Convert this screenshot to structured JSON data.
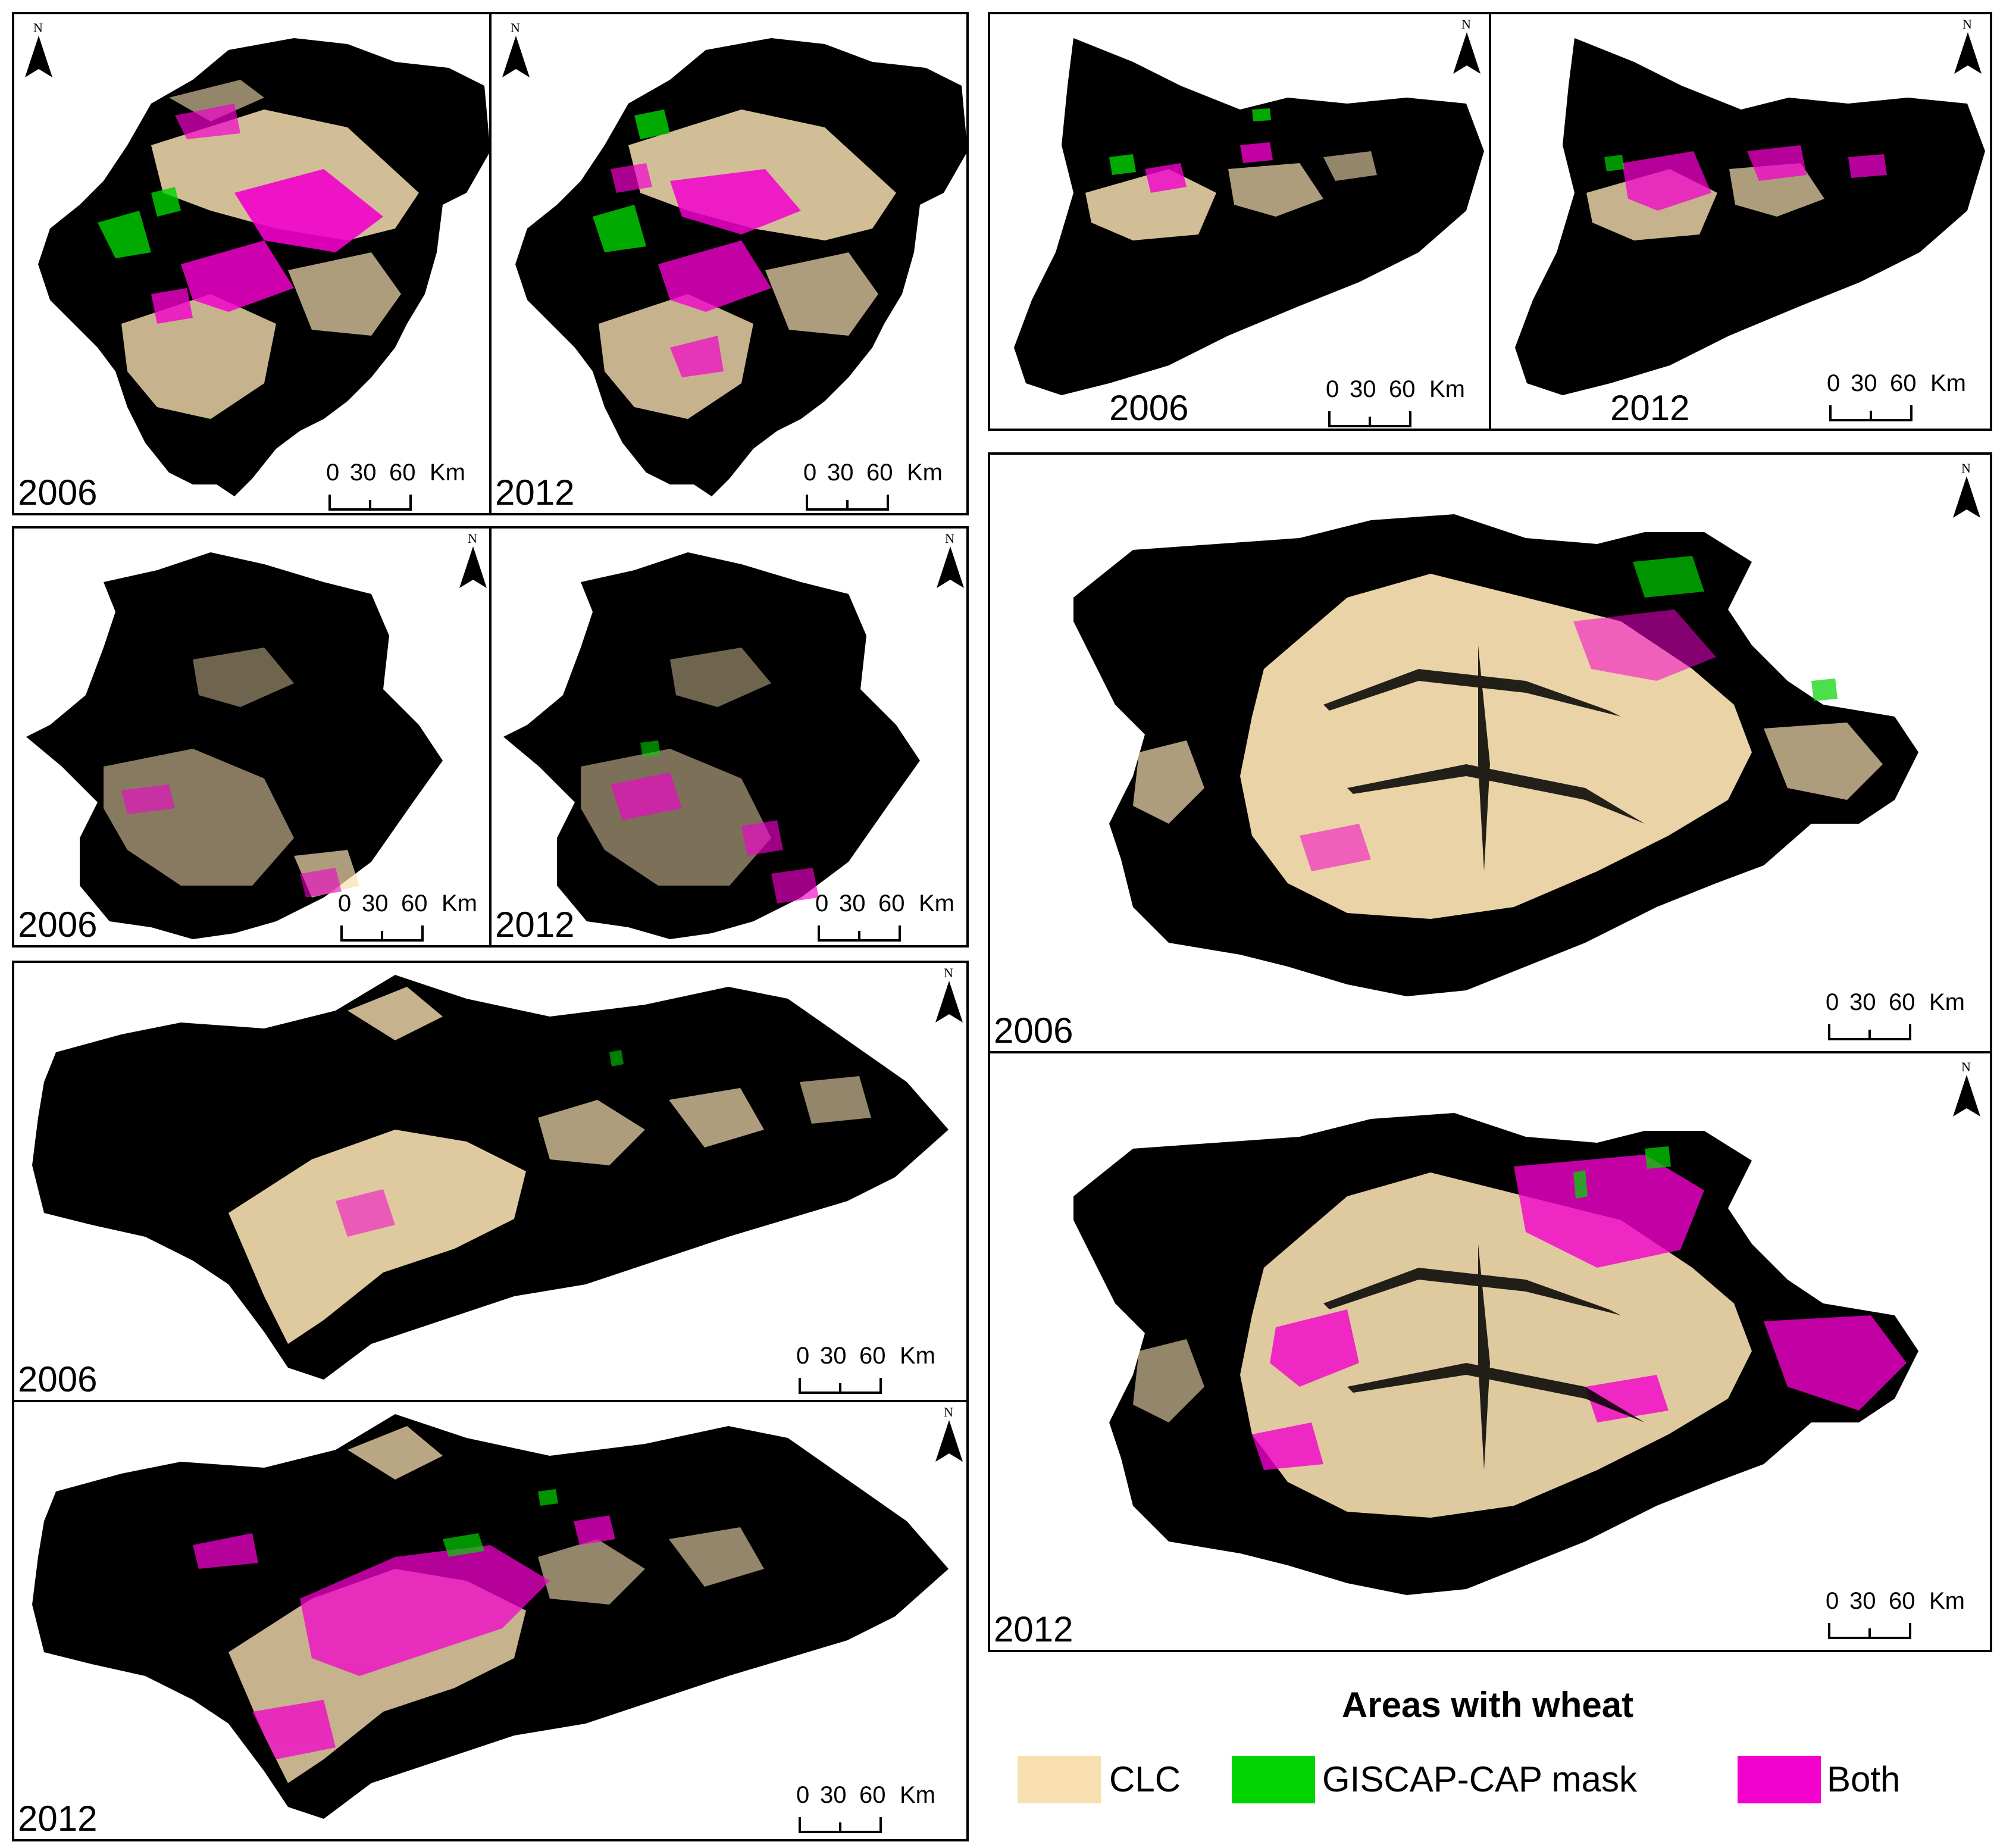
{
  "figure": {
    "panels": [
      {
        "id": "aragon-2006",
        "year": "2006",
        "scale_labels": [
          "0",
          "30",
          "60",
          "Km"
        ],
        "north_label": "N"
      },
      {
        "id": "aragon-2012",
        "year": "2012",
        "scale_labels": [
          "0",
          "30",
          "60",
          "Km"
        ],
        "north_label": "N"
      },
      {
        "id": "catalonia-2006",
        "year": "2006",
        "scale_labels": [
          "0",
          "30",
          "60",
          "Km"
        ],
        "north_label": "N"
      },
      {
        "id": "catalonia-2012",
        "year": "2012",
        "scale_labels": [
          "0",
          "30",
          "60",
          "Km"
        ],
        "north_label": "N"
      },
      {
        "id": "extremadura-2006",
        "year": "2006",
        "scale_labels": [
          "0",
          "30",
          "60",
          "Km"
        ],
        "north_label": "N"
      },
      {
        "id": "extremadura-2012",
        "year": "2012",
        "scale_labels": [
          "0",
          "30",
          "60",
          "Km"
        ],
        "north_label": "N"
      },
      {
        "id": "castilla-leon-2006",
        "year": "2006",
        "scale_labels": [
          "0",
          "30",
          "60",
          "Km"
        ],
        "north_label": "N"
      },
      {
        "id": "castilla-leon-2012",
        "year": "2012",
        "scale_labels": [
          "0",
          "30",
          "60",
          "Km"
        ],
        "north_label": "N"
      },
      {
        "id": "andalusia-2006",
        "year": "2006",
        "scale_labels": [
          "0",
          "30",
          "60",
          "Km"
        ],
        "north_label": "N"
      },
      {
        "id": "andalusia-2012",
        "year": "2012",
        "scale_labels": [
          "0",
          "30",
          "60",
          "Km"
        ],
        "north_label": "N"
      }
    ]
  },
  "legend": {
    "title": "Areas with wheat",
    "items": [
      {
        "label": "CLC",
        "color": "#f7dfb0"
      },
      {
        "label": "GISCAP-CAP mask",
        "color": "#00d400"
      },
      {
        "label": "Both",
        "color": "#f200cc"
      }
    ]
  },
  "colors": {
    "background_land": "#000000",
    "clc": "#f7dfb0",
    "giscap": "#00d400",
    "both": "#f200cc"
  }
}
